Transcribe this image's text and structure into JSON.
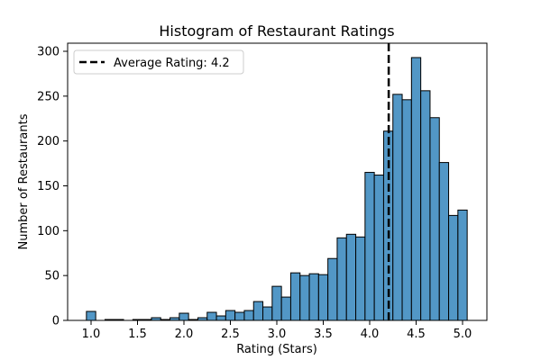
{
  "chart_data": {
    "type": "bar",
    "subtype": "histogram",
    "title": "Histogram of Restaurant Ratings",
    "xlabel": "Rating (Stars)",
    "ylabel": "Number of Restaurants",
    "xlim": [
      0.75,
      5.25
    ],
    "ylim": [
      0,
      310
    ],
    "x_ticks": [
      "1.0",
      "1.5",
      "2.0",
      "2.5",
      "3.0",
      "3.5",
      "4.0",
      "4.5",
      "5.0"
    ],
    "y_ticks": [
      "0",
      "50",
      "100",
      "150",
      "200",
      "250",
      "300"
    ],
    "bin_width": 0.1,
    "categories": [
      1.0,
      1.1,
      1.2,
      1.3,
      1.4,
      1.5,
      1.6,
      1.7,
      1.8,
      1.9,
      2.0,
      2.1,
      2.2,
      2.3,
      2.4,
      2.5,
      2.6,
      2.7,
      2.8,
      2.9,
      3.0,
      3.1,
      3.2,
      3.3,
      3.4,
      3.5,
      3.6,
      3.7,
      3.8,
      3.9,
      4.0,
      4.1,
      4.2,
      4.3,
      4.4,
      4.5,
      4.6,
      4.7,
      4.8,
      4.9,
      5.0
    ],
    "values": [
      10,
      0,
      1,
      1,
      0,
      1,
      1,
      3,
      1,
      3,
      8,
      1,
      3,
      9,
      5,
      11,
      9,
      11,
      21,
      15,
      38,
      26,
      53,
      50,
      52,
      51,
      69,
      92,
      96,
      93,
      165,
      162,
      211,
      252,
      246,
      293,
      256,
      226,
      176,
      117,
      123
    ],
    "bar_color": "#5297c6",
    "edge_color": "#000000",
    "annotations": [
      {
        "type": "vline",
        "x": 4.2,
        "style": "dashed",
        "color": "#000000",
        "label": "Average Rating: 4.2"
      }
    ],
    "legend": {
      "position": "upper left",
      "entries": [
        "Average Rating: 4.2"
      ]
    },
    "grid": false
  }
}
